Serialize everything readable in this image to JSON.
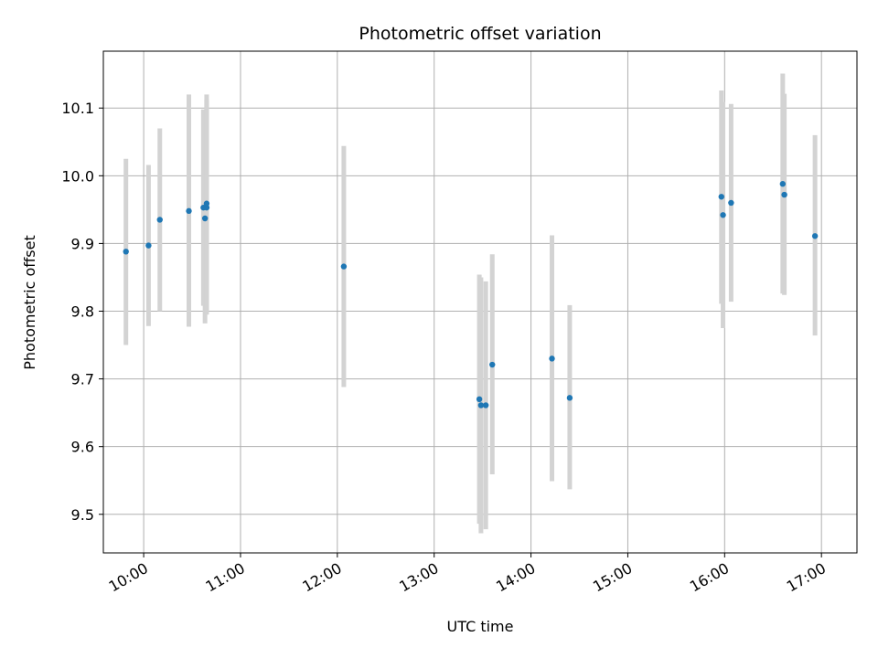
{
  "chart_data": {
    "type": "scatter",
    "title": "Photometric offset variation",
    "xlabel": "UTC time",
    "ylabel": "Photometric offset",
    "xlim": [
      "09:35",
      "17:22"
    ],
    "ylim": [
      9.443,
      10.184
    ],
    "x_ticks": [
      "10:00",
      "11:00",
      "12:00",
      "13:00",
      "14:00",
      "15:00",
      "16:00",
      "17:00"
    ],
    "y_ticks": [
      9.5,
      9.6,
      9.7,
      9.8,
      9.9,
      10.0,
      10.1
    ],
    "y_tick_labels": [
      "9.5",
      "9.6",
      "9.7",
      "9.8",
      "9.9",
      "10.0",
      "10.1"
    ],
    "grid": true,
    "point_color": "#1f77b4",
    "errorbar_color": "#d3d3d3",
    "points": [
      {
        "x": "09:49",
        "y": 9.888,
        "yerr_low": 9.75,
        "yerr_high": 10.025
      },
      {
        "x": "10:03",
        "y": 9.897,
        "yerr_low": 9.778,
        "yerr_high": 10.016
      },
      {
        "x": "10:10",
        "y": 9.935,
        "yerr_low": 9.8,
        "yerr_high": 10.07
      },
      {
        "x": "10:28",
        "y": 9.948,
        "yerr_low": 9.777,
        "yerr_high": 10.12
      },
      {
        "x": "10:37",
        "y": 9.953,
        "yerr_low": 9.808,
        "yerr_high": 10.098
      },
      {
        "x": "10:38",
        "y": 9.937,
        "yerr_low": 9.782,
        "yerr_high": 10.092
      },
      {
        "x": "10:39",
        "y": 9.953,
        "yerr_low": 9.795,
        "yerr_high": 10.112
      },
      {
        "x": "10:39",
        "y": 9.959,
        "yerr_low": 9.798,
        "yerr_high": 10.12
      },
      {
        "x": "12:04",
        "y": 9.866,
        "yerr_low": 9.688,
        "yerr_high": 10.044
      },
      {
        "x": "13:28",
        "y": 9.67,
        "yerr_low": 9.486,
        "yerr_high": 9.854
      },
      {
        "x": "13:29",
        "y": 9.661,
        "yerr_low": 9.472,
        "yerr_high": 9.85
      },
      {
        "x": "13:32",
        "y": 9.661,
        "yerr_low": 9.478,
        "yerr_high": 9.844
      },
      {
        "x": "13:36",
        "y": 9.721,
        "yerr_low": 9.559,
        "yerr_high": 9.884
      },
      {
        "x": "14:13",
        "y": 9.73,
        "yerr_low": 9.549,
        "yerr_high": 9.912
      },
      {
        "x": "14:24",
        "y": 9.672,
        "yerr_low": 9.537,
        "yerr_high": 9.809
      },
      {
        "x": "15:58",
        "y": 9.969,
        "yerr_low": 9.811,
        "yerr_high": 10.126
      },
      {
        "x": "15:59",
        "y": 9.942,
        "yerr_low": 9.775,
        "yerr_high": 10.109
      },
      {
        "x": "16:04",
        "y": 9.96,
        "yerr_low": 9.814,
        "yerr_high": 10.106
      },
      {
        "x": "16:36",
        "y": 9.988,
        "yerr_low": 9.826,
        "yerr_high": 10.151
      },
      {
        "x": "16:37",
        "y": 9.972,
        "yerr_low": 9.824,
        "yerr_high": 10.121
      },
      {
        "x": "16:56",
        "y": 9.911,
        "yerr_low": 9.764,
        "yerr_high": 10.06
      }
    ]
  }
}
